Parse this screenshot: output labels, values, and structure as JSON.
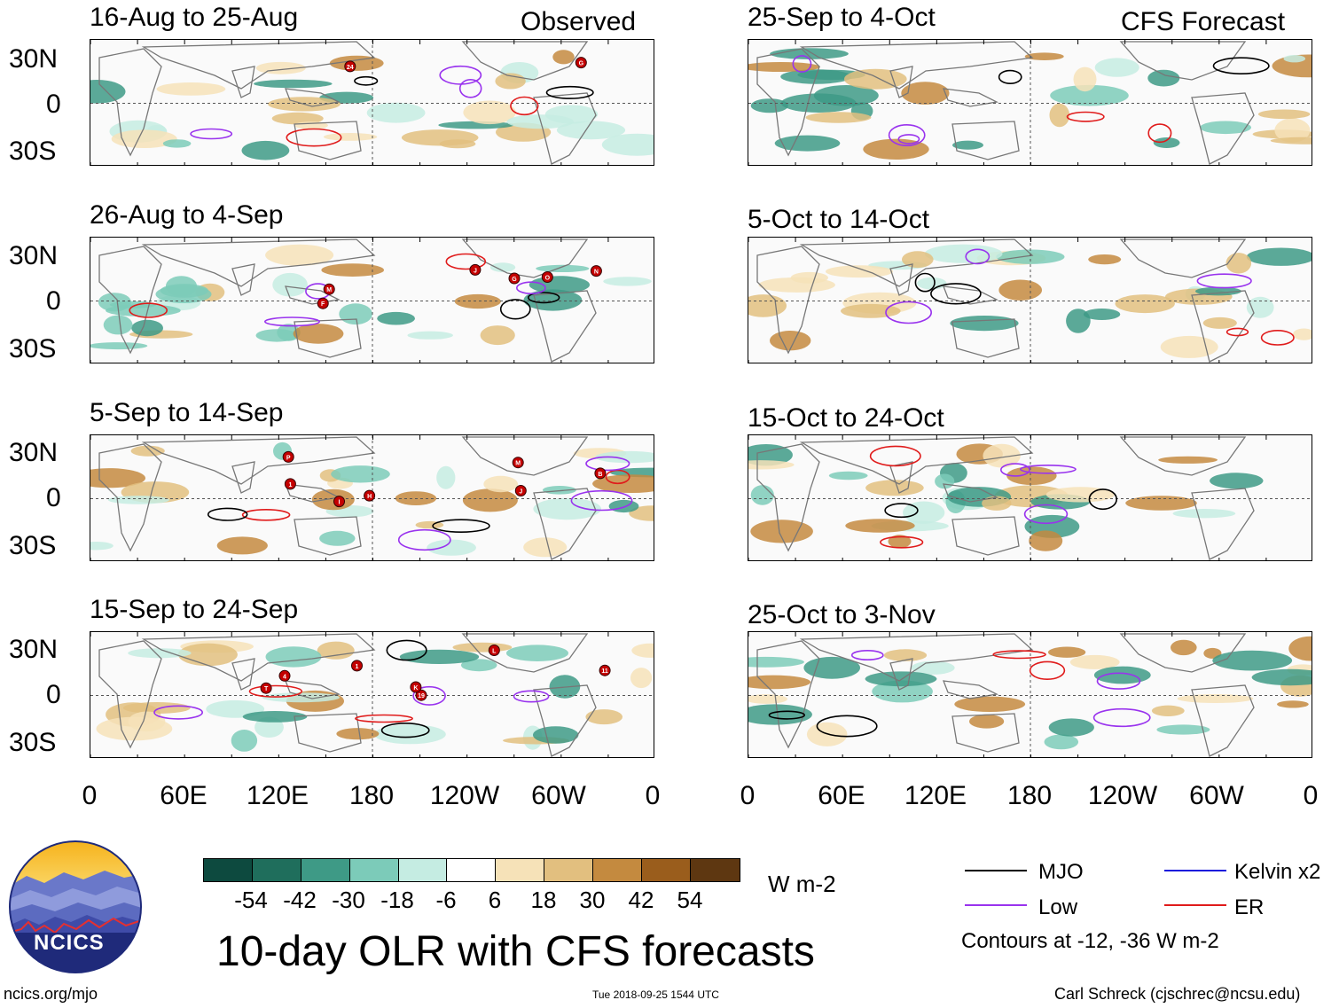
{
  "left_header": "Observed",
  "right_header": "CFS Forecast",
  "lat_labels": [
    "30N",
    "0",
    "30S"
  ],
  "lon_labels": [
    "0",
    "60E",
    "120E",
    "180",
    "120W",
    "60W",
    "0"
  ],
  "panels_left": [
    {
      "title": "16-Aug to 25-Aug"
    },
    {
      "title": "26-Aug to 4-Sep"
    },
    {
      "title": "5-Sep to 14-Sep"
    },
    {
      "title": "15-Sep to 24-Sep"
    }
  ],
  "panels_right": [
    {
      "title": "25-Sep to 4-Oct"
    },
    {
      "title": "5-Oct to 14-Oct"
    },
    {
      "title": "15-Oct to 24-Oct"
    },
    {
      "title": "25-Oct to 3-Nov"
    }
  ],
  "colorbar": {
    "unit": "W m-2",
    "ticks": [
      "-54",
      "-42",
      "-30",
      "-18",
      "-6",
      "6",
      "18",
      "30",
      "42",
      "54"
    ],
    "colors": [
      "#0d4a3f",
      "#1f6e5c",
      "#3e9a86",
      "#7ccbb9",
      "#c5ece2",
      "#ffffff",
      "#f6e2b8",
      "#e2bf7f",
      "#c48a3f",
      "#9a5d1c",
      "#5e3711"
    ]
  },
  "legend": {
    "mjo": "MJO",
    "kelvin": "Kelvin x2",
    "low": "Low",
    "er": "ER",
    "contours": "Contours at -12, -36 W m-2",
    "colors": {
      "mjo": "#000000",
      "kelvin": "#1a1adc",
      "low": "#9933ee",
      "er": "#e01b1b"
    }
  },
  "title": "10-day OLR with CFS forecasts",
  "logo_text": "NCICS",
  "url": "ncics.org/mjo",
  "timestamp": "Tue 2018-09-25 1544 UTC",
  "credit": "Carl Schreck (cjschrec@ncsu.edu)",
  "storm_markers": {
    "p0": [
      "24",
      "G"
    ],
    "p1": [
      "J",
      "M",
      "N",
      "O",
      "G",
      "F"
    ],
    "p2": [
      "B",
      "M",
      "P",
      "J",
      "I",
      "H",
      "1"
    ],
    "p3": [
      "4",
      "T",
      "19",
      "L",
      "11",
      "K",
      "1"
    ]
  }
}
